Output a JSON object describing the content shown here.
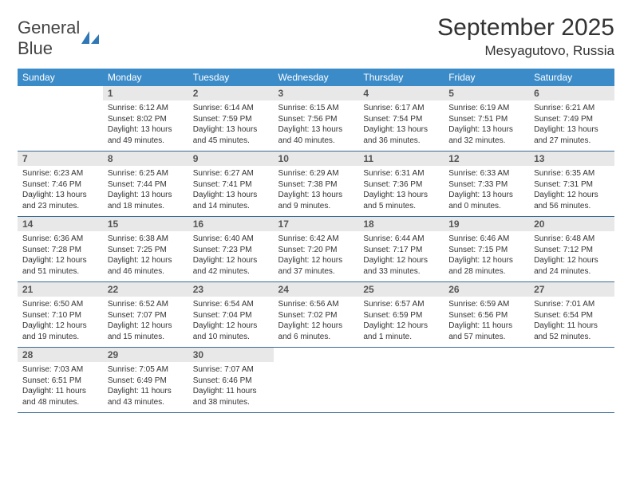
{
  "brand": {
    "name_part1": "General",
    "name_part2": "Blue"
  },
  "title": "September 2025",
  "location": "Mesyagutovo, Russia",
  "colors": {
    "header_bg": "#3b8bc9",
    "header_fg": "#ffffff",
    "daynum_bg": "#e8e8e8",
    "rule": "#3b6c95",
    "text": "#333333",
    "logo_accent": "#2f78b5"
  },
  "weekdays": [
    "Sunday",
    "Monday",
    "Tuesday",
    "Wednesday",
    "Thursday",
    "Friday",
    "Saturday"
  ],
  "leading_blanks": 1,
  "days": [
    {
      "n": 1,
      "sunrise": "6:12 AM",
      "sunset": "8:02 PM",
      "daylight": "13 hours and 49 minutes."
    },
    {
      "n": 2,
      "sunrise": "6:14 AM",
      "sunset": "7:59 PM",
      "daylight": "13 hours and 45 minutes."
    },
    {
      "n": 3,
      "sunrise": "6:15 AM",
      "sunset": "7:56 PM",
      "daylight": "13 hours and 40 minutes."
    },
    {
      "n": 4,
      "sunrise": "6:17 AM",
      "sunset": "7:54 PM",
      "daylight": "13 hours and 36 minutes."
    },
    {
      "n": 5,
      "sunrise": "6:19 AM",
      "sunset": "7:51 PM",
      "daylight": "13 hours and 32 minutes."
    },
    {
      "n": 6,
      "sunrise": "6:21 AM",
      "sunset": "7:49 PM",
      "daylight": "13 hours and 27 minutes."
    },
    {
      "n": 7,
      "sunrise": "6:23 AM",
      "sunset": "7:46 PM",
      "daylight": "13 hours and 23 minutes."
    },
    {
      "n": 8,
      "sunrise": "6:25 AM",
      "sunset": "7:44 PM",
      "daylight": "13 hours and 18 minutes."
    },
    {
      "n": 9,
      "sunrise": "6:27 AM",
      "sunset": "7:41 PM",
      "daylight": "13 hours and 14 minutes."
    },
    {
      "n": 10,
      "sunrise": "6:29 AM",
      "sunset": "7:38 PM",
      "daylight": "13 hours and 9 minutes."
    },
    {
      "n": 11,
      "sunrise": "6:31 AM",
      "sunset": "7:36 PM",
      "daylight": "13 hours and 5 minutes."
    },
    {
      "n": 12,
      "sunrise": "6:33 AM",
      "sunset": "7:33 PM",
      "daylight": "13 hours and 0 minutes."
    },
    {
      "n": 13,
      "sunrise": "6:35 AM",
      "sunset": "7:31 PM",
      "daylight": "12 hours and 56 minutes."
    },
    {
      "n": 14,
      "sunrise": "6:36 AM",
      "sunset": "7:28 PM",
      "daylight": "12 hours and 51 minutes."
    },
    {
      "n": 15,
      "sunrise": "6:38 AM",
      "sunset": "7:25 PM",
      "daylight": "12 hours and 46 minutes."
    },
    {
      "n": 16,
      "sunrise": "6:40 AM",
      "sunset": "7:23 PM",
      "daylight": "12 hours and 42 minutes."
    },
    {
      "n": 17,
      "sunrise": "6:42 AM",
      "sunset": "7:20 PM",
      "daylight": "12 hours and 37 minutes."
    },
    {
      "n": 18,
      "sunrise": "6:44 AM",
      "sunset": "7:17 PM",
      "daylight": "12 hours and 33 minutes."
    },
    {
      "n": 19,
      "sunrise": "6:46 AM",
      "sunset": "7:15 PM",
      "daylight": "12 hours and 28 minutes."
    },
    {
      "n": 20,
      "sunrise": "6:48 AM",
      "sunset": "7:12 PM",
      "daylight": "12 hours and 24 minutes."
    },
    {
      "n": 21,
      "sunrise": "6:50 AM",
      "sunset": "7:10 PM",
      "daylight": "12 hours and 19 minutes."
    },
    {
      "n": 22,
      "sunrise": "6:52 AM",
      "sunset": "7:07 PM",
      "daylight": "12 hours and 15 minutes."
    },
    {
      "n": 23,
      "sunrise": "6:54 AM",
      "sunset": "7:04 PM",
      "daylight": "12 hours and 10 minutes."
    },
    {
      "n": 24,
      "sunrise": "6:56 AM",
      "sunset": "7:02 PM",
      "daylight": "12 hours and 6 minutes."
    },
    {
      "n": 25,
      "sunrise": "6:57 AM",
      "sunset": "6:59 PM",
      "daylight": "12 hours and 1 minute."
    },
    {
      "n": 26,
      "sunrise": "6:59 AM",
      "sunset": "6:56 PM",
      "daylight": "11 hours and 57 minutes."
    },
    {
      "n": 27,
      "sunrise": "7:01 AM",
      "sunset": "6:54 PM",
      "daylight": "11 hours and 52 minutes."
    },
    {
      "n": 28,
      "sunrise": "7:03 AM",
      "sunset": "6:51 PM",
      "daylight": "11 hours and 48 minutes."
    },
    {
      "n": 29,
      "sunrise": "7:05 AM",
      "sunset": "6:49 PM",
      "daylight": "11 hours and 43 minutes."
    },
    {
      "n": 30,
      "sunrise": "7:07 AM",
      "sunset": "6:46 PM",
      "daylight": "11 hours and 38 minutes."
    }
  ],
  "labels": {
    "sunrise": "Sunrise:",
    "sunset": "Sunset:",
    "daylight": "Daylight:"
  }
}
